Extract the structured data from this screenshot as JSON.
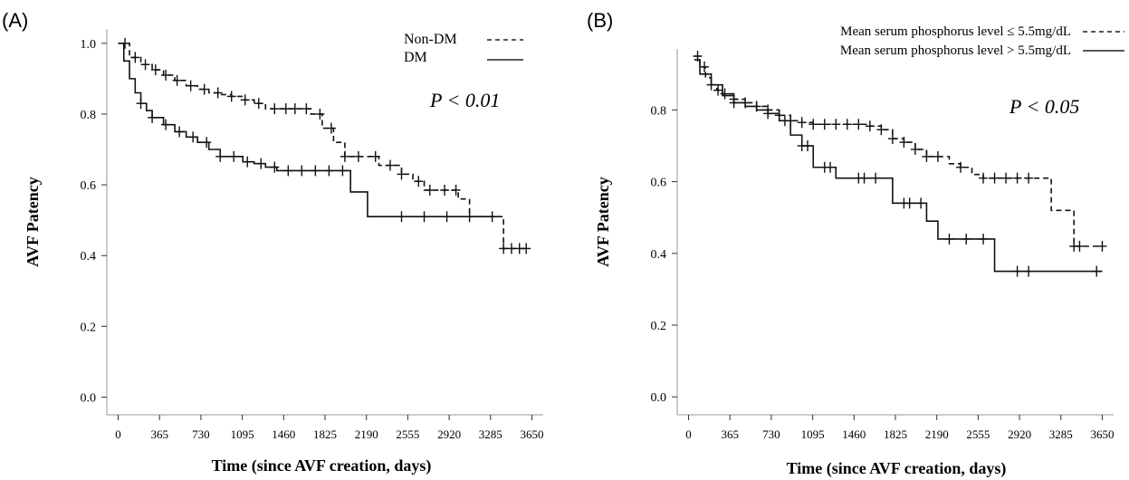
{
  "chart_data": [
    {
      "type": "line",
      "panel_label": "(A)",
      "xlabel": "Time (since AVF creation, days)",
      "ylabel": "AVF Patency",
      "x_ticks": [
        0,
        365,
        730,
        1095,
        1460,
        1825,
        2190,
        2555,
        2920,
        3285,
        3650
      ],
      "y_ticks": [
        0.0,
        0.2,
        0.4,
        0.6,
        0.8,
        1.0
      ],
      "y_tick_labels": [
        "0.0",
        "0.2",
        "0.4",
        "0.6",
        "0.8",
        "1.0"
      ],
      "xlim": [
        -100,
        3750
      ],
      "ylim": [
        -0.05,
        1.02
      ],
      "annotation": "P < 0.01",
      "legend_position": "top-right",
      "series": [
        {
          "name": "Non-DM",
          "line_style": "dashed",
          "x": [
            0,
            100,
            200,
            300,
            400,
            500,
            600,
            700,
            800,
            900,
            1000,
            1100,
            1200,
            1300,
            1400,
            1500,
            1600,
            1700,
            1800,
            1900,
            2000,
            2100,
            2200,
            2300,
            2400,
            2500,
            2600,
            2700,
            2800,
            2900,
            3000,
            3100,
            3200,
            3300,
            3400,
            3500,
            3600
          ],
          "y": [
            1.0,
            0.96,
            0.94,
            0.925,
            0.91,
            0.895,
            0.88,
            0.87,
            0.86,
            0.855,
            0.85,
            0.84,
            0.83,
            0.815,
            0.815,
            0.815,
            0.815,
            0.8,
            0.76,
            0.72,
            0.68,
            0.68,
            0.68,
            0.655,
            0.655,
            0.63,
            0.61,
            0.585,
            0.585,
            0.585,
            0.56,
            0.51,
            0.51,
            0.51,
            0.42,
            0.42,
            0.42
          ],
          "censor_x": [
            60,
            150,
            240,
            330,
            420,
            520,
            640,
            760,
            880,
            1000,
            1120,
            1240,
            1380,
            1480,
            1560,
            1660,
            1780,
            1880,
            2000,
            2120,
            2270,
            2400,
            2500,
            2650,
            2750,
            2880,
            2980,
            3400,
            3470,
            3540,
            3600
          ]
        },
        {
          "name": "DM",
          "line_style": "solid",
          "x": [
            0,
            50,
            100,
            150,
            200,
            250,
            300,
            400,
            500,
            600,
            700,
            800,
            900,
            1000,
            1100,
            1200,
            1300,
            1400,
            1500,
            1600,
            1700,
            1800,
            1900,
            2000,
            2050,
            2150,
            2200,
            2400,
            2600,
            2800,
            3000,
            3200,
            3350
          ],
          "y": [
            1.0,
            0.95,
            0.9,
            0.86,
            0.83,
            0.81,
            0.79,
            0.77,
            0.75,
            0.735,
            0.72,
            0.7,
            0.68,
            0.68,
            0.665,
            0.66,
            0.65,
            0.64,
            0.64,
            0.64,
            0.64,
            0.64,
            0.64,
            0.64,
            0.58,
            0.58,
            0.51,
            0.51,
            0.51,
            0.51,
            0.51,
            0.51,
            0.51
          ],
          "censor_x": [
            200,
            300,
            420,
            540,
            660,
            780,
            900,
            1020,
            1140,
            1260,
            1380,
            1500,
            1620,
            1740,
            1860,
            1980,
            2500,
            2700,
            2900,
            3100,
            3300
          ]
        }
      ]
    },
    {
      "type": "line",
      "panel_label": "(B)",
      "xlabel": "Time (since AVF creation, days)",
      "ylabel": "AVF Patency",
      "x_ticks": [
        0,
        365,
        730,
        1095,
        1460,
        1825,
        2190,
        2555,
        2920,
        3285,
        3650
      ],
      "y_ticks": [
        0.0,
        0.2,
        0.4,
        0.6,
        0.8
      ],
      "y_tick_labels": [
        "0.0",
        "0.2",
        "0.4",
        "0.6",
        "0.8"
      ],
      "xlim": [
        -100,
        3750
      ],
      "ylim": [
        -0.05,
        0.95
      ],
      "annotation": "P < 0.05",
      "legend_position": "top-right",
      "series": [
        {
          "name": "Mean serum phosphorus level ≤ 5.5mg/dL",
          "line_style": "dashed",
          "x": [
            50,
            100,
            150,
            200,
            250,
            300,
            400,
            500,
            600,
            700,
            800,
            900,
            1000,
            1100,
            1200,
            1300,
            1400,
            1500,
            1600,
            1700,
            1800,
            1900,
            2000,
            2100,
            2200,
            2300,
            2400,
            2500,
            2600,
            2800,
            3000,
            3100,
            3200,
            3300,
            3400,
            3500,
            3650
          ],
          "y": [
            0.95,
            0.92,
            0.89,
            0.87,
            0.855,
            0.845,
            0.83,
            0.82,
            0.81,
            0.8,
            0.785,
            0.77,
            0.765,
            0.76,
            0.76,
            0.76,
            0.76,
            0.76,
            0.755,
            0.745,
            0.72,
            0.71,
            0.69,
            0.67,
            0.67,
            0.65,
            0.64,
            0.62,
            0.61,
            0.61,
            0.61,
            0.61,
            0.52,
            0.52,
            0.42,
            0.42,
            0.42
          ],
          "censor_x": [
            80,
            140,
            200,
            260,
            320,
            400,
            500,
            600,
            700,
            800,
            900,
            1000,
            1100,
            1200,
            1300,
            1400,
            1500,
            1600,
            1700,
            1800,
            1900,
            2000,
            2100,
            2200,
            2400,
            2600,
            2700,
            2800,
            2900,
            3000,
            3400,
            3450,
            3650
          ]
        },
        {
          "name": "Mean serum phosphorus level > 5.5mg/dL",
          "line_style": "solid",
          "x": [
            50,
            100,
            200,
            300,
            400,
            500,
            600,
            700,
            800,
            900,
            1000,
            1100,
            1200,
            1300,
            1400,
            1500,
            1600,
            1700,
            1800,
            1900,
            2000,
            2100,
            2200,
            2400,
            2600,
            2700,
            2900,
            3100,
            3300,
            3500,
            3650
          ],
          "y": [
            0.94,
            0.9,
            0.87,
            0.84,
            0.82,
            0.81,
            0.8,
            0.79,
            0.77,
            0.73,
            0.7,
            0.64,
            0.64,
            0.61,
            0.61,
            0.61,
            0.61,
            0.61,
            0.54,
            0.54,
            0.54,
            0.49,
            0.44,
            0.44,
            0.44,
            0.35,
            0.35,
            0.35,
            0.35,
            0.35,
            0.35
          ],
          "censor_x": [
            400,
            700,
            850,
            1000,
            1050,
            1200,
            1250,
            1500,
            1550,
            1650,
            1900,
            1950,
            2050,
            2300,
            2450,
            2600,
            2900,
            3000,
            3600
          ]
        }
      ]
    }
  ]
}
